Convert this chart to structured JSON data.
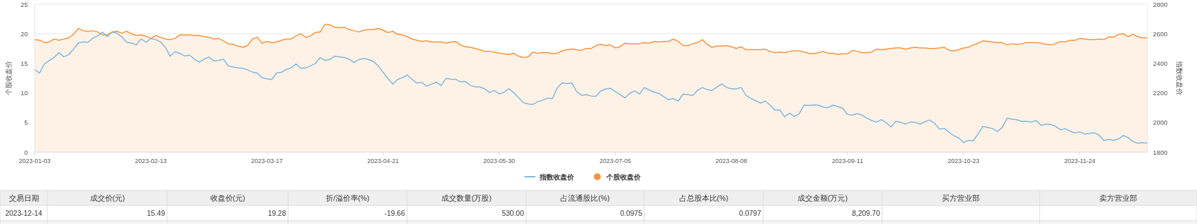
{
  "chart_data": {
    "type": "line",
    "categories": [
      "2023-01-03",
      null,
      null,
      null,
      null,
      null,
      null,
      null,
      null,
      null,
      null,
      null,
      null,
      null,
      null,
      null,
      null,
      null,
      null,
      null,
      null,
      null,
      null,
      null,
      "2023-02-13",
      null,
      null,
      null,
      null,
      null,
      null,
      null,
      null,
      null,
      null,
      null,
      null,
      null,
      null,
      null,
      null,
      null,
      null,
      null,
      null,
      null,
      null,
      null,
      "2023-03-17",
      null,
      null,
      null,
      null,
      null,
      null,
      null,
      null,
      null,
      null,
      null,
      null,
      null,
      null,
      null,
      null,
      null,
      null,
      null,
      null,
      null,
      null,
      null,
      "2023-04-21",
      null,
      null,
      null,
      null,
      null,
      null,
      null,
      null,
      null,
      null,
      null,
      null,
      null,
      null,
      null,
      null,
      null,
      null,
      null,
      null,
      null,
      null,
      null,
      "2023-05-30",
      null,
      null,
      null,
      null,
      null,
      null,
      null,
      null,
      null,
      null,
      null,
      null,
      null,
      null,
      null,
      null,
      null,
      null,
      null,
      null,
      null,
      null,
      null,
      "2023-07-05",
      null,
      null,
      null,
      null,
      null,
      null,
      null,
      null,
      null,
      null,
      null,
      null,
      null,
      null,
      null,
      null,
      null,
      null,
      null,
      null,
      null,
      null,
      null,
      "2023-08-08",
      null,
      null,
      null,
      null,
      null,
      null,
      null,
      null,
      null,
      null,
      null,
      null,
      null,
      null,
      null,
      null,
      null,
      null,
      null,
      null,
      null,
      null,
      null,
      "2023-09-11",
      null,
      null,
      null,
      null,
      null,
      null,
      null,
      null,
      null,
      null,
      null,
      null,
      null,
      null,
      null,
      null,
      null,
      null,
      null,
      null,
      null,
      null,
      null,
      "2023-10-23",
      null,
      null,
      null,
      null,
      null,
      null,
      null,
      null,
      null,
      null,
      null,
      null,
      null,
      null,
      null,
      null,
      null,
      null,
      null,
      null,
      null,
      null,
      null,
      "2023-11-24",
      null,
      null,
      null,
      null,
      null,
      null,
      null,
      null,
      null,
      null,
      null,
      null,
      null,
      null
    ],
    "series": [
      {
        "name": "指数收盘价",
        "type": "line",
        "axis": "y2",
        "color": "#7fb6dd",
        "values": [
          2357,
          2334,
          2396,
          2419,
          2440,
          2472,
          2444,
          2458,
          2494,
          2537,
          2544,
          2542,
          2569,
          2585,
          2611,
          2579,
          2611,
          2602,
          2579,
          2542,
          2537,
          2524,
          2565,
          2542,
          2567,
          2561,
          2544,
          2508,
          2448,
          2478,
          2467,
          2449,
          2455,
          2428,
          2408,
          2428,
          2442,
          2416,
          2419,
          2428,
          2382,
          2375,
          2369,
          2366,
          2355,
          2341,
          2334,
          2302,
          2295,
          2291,
          2335,
          2339,
          2359,
          2369,
          2396,
          2366,
          2369,
          2383,
          2398,
          2439,
          2419,
          2426,
          2448,
          2444,
          2439,
          2428,
          2405,
          2426,
          2432,
          2426,
          2412,
          2383,
          2339,
          2298,
          2259,
          2291,
          2303,
          2321,
          2291,
          2266,
          2271,
          2245,
          2259,
          2273,
          2250,
          2298,
          2293,
          2291,
          2275,
          2277,
          2252,
          2241,
          2241,
          2227,
          2202,
          2216,
          2193,
          2204,
          2229,
          2202,
          2168,
          2134,
          2125,
          2122,
          2141,
          2150,
          2165,
          2161,
          2234,
          2268,
          2263,
          2268,
          2209,
          2184,
          2188,
          2179,
          2177,
          2213,
          2227,
          2231,
          2209,
          2188,
          2166,
          2197,
          2214,
          2193,
          2236,
          2220,
          2204,
          2197,
          2174,
          2154,
          2161,
          2145,
          2191,
          2189,
          2182,
          2218,
          2236,
          2222,
          2216,
          2239,
          2261,
          2237,
          2227,
          2227,
          2237,
          2184,
          2163,
          2147,
          2131,
          2145,
          2117,
          2083,
          2085,
          2038,
          2063,
          2040,
          2059,
          2117,
          2116,
          2118,
          2117,
          2103,
          2101,
          2117,
          2108,
          2096,
          2055,
          2050,
          2060,
          2050,
          2029,
          2013,
          2003,
          2019,
          1998,
          1969,
          2008,
          2001,
          1989,
          2003,
          2001,
          1989,
          2005,
          2017,
          1994,
          1955,
          1960,
          1934,
          1910,
          1895,
          1864,
          1879,
          1876,
          1924,
          1974,
          1967,
          1958,
          1939,
          1967,
          2029,
          2022,
          2019,
          2007,
          2008,
          2003,
          2013,
          1981,
          1989,
          1987,
          1974,
          1950,
          1958,
          1941,
          1929,
          1936,
          1922,
          1926,
          1931,
          1914,
          1879,
          1886,
          1879,
          1889,
          1912,
          1898,
          1871,
          1860,
          1864,
          1860
        ]
      },
      {
        "name": "个股收盘价",
        "type": "area",
        "color": "#f7923a",
        "values": [
          19.0,
          18.9,
          18.5,
          18.6,
          19.1,
          18.9,
          19.1,
          19.3,
          19.9,
          20.9,
          20.5,
          20.4,
          20.5,
          20.3,
          19.8,
          19.8,
          20.3,
          20.4,
          20.1,
          20.4,
          20.0,
          19.7,
          19.8,
          19.6,
          19.2,
          19.7,
          19.4,
          19.1,
          19.0,
          19.2,
          19.8,
          19.8,
          19.8,
          19.7,
          19.7,
          19.5,
          19.4,
          19.1,
          19.2,
          18.8,
          18.3,
          18.2,
          17.9,
          17.7,
          18.0,
          19.1,
          19.4,
          18.4,
          18.7,
          18.5,
          18.6,
          18.9,
          19.1,
          19.1,
          19.6,
          20.0,
          19.4,
          19.6,
          20.2,
          20.3,
          21.6,
          21.5,
          21.1,
          21.0,
          21.1,
          20.7,
          20.5,
          20.3,
          20.6,
          20.7,
          20.7,
          20.9,
          20.6,
          20.2,
          20.4,
          19.9,
          19.8,
          19.5,
          19.1,
          18.9,
          18.7,
          18.8,
          18.6,
          18.6,
          18.6,
          18.4,
          18.6,
          18.7,
          18.1,
          17.8,
          17.7,
          17.5,
          17.3,
          17.0,
          17.0,
          16.9,
          16.7,
          16.6,
          16.5,
          16.7,
          16.2,
          16.0,
          16.1,
          16.9,
          16.7,
          16.8,
          16.8,
          16.6,
          16.7,
          17.1,
          17.3,
          17.4,
          17.3,
          17.2,
          17.5,
          17.5,
          18.0,
          18.2,
          18.0,
          18.1,
          17.6,
          17.8,
          18.4,
          18.3,
          18.3,
          18.3,
          18.5,
          18.4,
          18.7,
          18.6,
          18.7,
          18.7,
          19.1,
          18.7,
          18.0,
          18.0,
          18.3,
          18.5,
          19.0,
          18.2,
          17.7,
          17.9,
          17.9,
          18.0,
          17.8,
          17.5,
          17.8,
          17.3,
          17.3,
          17.3,
          17.3,
          17.4,
          17.0,
          16.8,
          16.9,
          16.8,
          17.0,
          17.1,
          17.1,
          16.9,
          16.7,
          16.6,
          16.8,
          17.0,
          16.7,
          16.7,
          16.5,
          16.6,
          16.6,
          17.2,
          17.0,
          16.8,
          16.8,
          16.9,
          17.4,
          17.3,
          17.4,
          17.5,
          17.6,
          17.6,
          17.4,
          17.6,
          17.7,
          17.6,
          17.6,
          17.5,
          17.5,
          17.6,
          17.7,
          17.2,
          17.1,
          17.3,
          17.6,
          17.7,
          18.1,
          18.4,
          18.8,
          18.7,
          18.6,
          18.5,
          18.5,
          18.1,
          18.3,
          18.2,
          18.3,
          18.5,
          18.5,
          18.5,
          18.4,
          18.2,
          18.1,
          18.3,
          18.7,
          18.6,
          18.9,
          18.9,
          19.2,
          19.1,
          19.0,
          19.0,
          19.1,
          19.0,
          19.5,
          19.4,
          19.9,
          20.0,
          19.5,
          19.9,
          19.5,
          19.3,
          19.3
        ]
      }
    ],
    "ylabel": "个股收盘价",
    "y2label": "指数收盘价",
    "ylim": [
      0,
      25
    ],
    "yticks": [
      0,
      5,
      10,
      15,
      20,
      25
    ],
    "y2lim": [
      1800,
      2800
    ],
    "y2ticks": [
      1800,
      2000,
      2200,
      2400,
      2600,
      2800
    ],
    "grid": "y",
    "legend": "bottom",
    "annotations": [
      "交易日期",
      "成交价(元)",
      "收盘价(元)",
      "折/溢价率(%)",
      "成交数量(万股)",
      "占流通股比(%)",
      "占总股本比(%)",
      "成交金额(万元)",
      "买方营业部",
      "卖方营业部",
      "2023-12-14",
      "15.49",
      "19.28",
      "-19.66",
      "530.00",
      "0.0975",
      "0.0797",
      "8,209.70"
    ]
  }
}
